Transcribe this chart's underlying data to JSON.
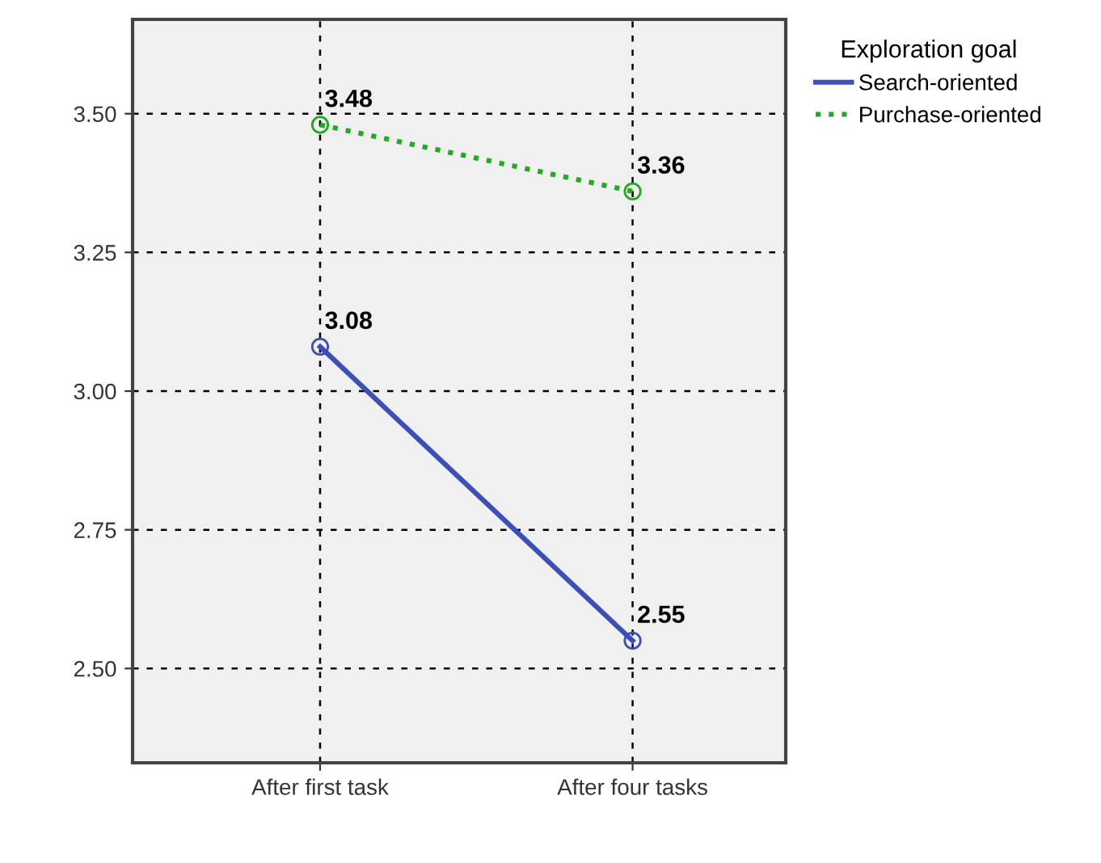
{
  "chart_data": {
    "type": "line",
    "legend_title": "Exploration goal",
    "categories": [
      "After first task",
      "After four tasks"
    ],
    "series": [
      {
        "name": "Search-oriented",
        "color": "#3b4fb8",
        "values": [
          3.08,
          2.55
        ],
        "line_style": "solid"
      },
      {
        "name": "Purchase-oriented",
        "color": "#22aa22",
        "values": [
          3.48,
          3.36
        ],
        "line_style": "dotted"
      }
    ],
    "ylim": [
      2.33,
      3.67
    ],
    "yticks": [
      {
        "value": 2.5,
        "label": "2.50"
      },
      {
        "value": 2.75,
        "label": "2.75"
      },
      {
        "value": 3.0,
        "label": "3.00"
      },
      {
        "value": 3.25,
        "label": "3.25"
      },
      {
        "value": 3.5,
        "label": "3.50"
      }
    ],
    "grid": true,
    "legend": "top right",
    "marker": "circle",
    "data_labels": true
  }
}
